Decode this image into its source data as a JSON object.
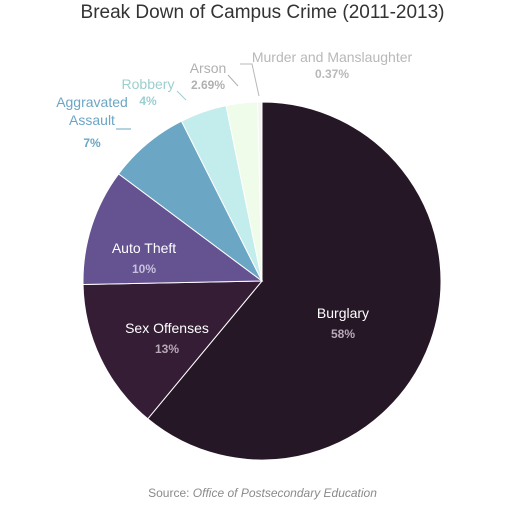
{
  "chart_data": {
    "type": "pie",
    "title": "Break Down of Campus Crime (2011-2013)",
    "slices": [
      {
        "label": "Burglary",
        "value": 58,
        "value_label": "58%",
        "color": "#251726",
        "label_color": "#ffffff",
        "value_color": "#b7a9b8",
        "label_position": "inside"
      },
      {
        "label": "Sex Offenses",
        "value": 13,
        "value_label": "13%",
        "color": "#341d35",
        "label_color": "#ffffff",
        "value_color": "#b7a9b8",
        "label_position": "inside"
      },
      {
        "label": "Auto Theft",
        "value": 10,
        "value_label": "10%",
        "color": "#645291",
        "label_color": "#ffffff",
        "value_color": "#c9c0de",
        "label_position": "inside"
      },
      {
        "label": "Aggravated\nAssault",
        "value": 7,
        "value_label": "7%",
        "color": "#6ba6c5",
        "label_color": "#6ba6c5",
        "value_color": "#6ba6c5",
        "label_position": "outside"
      },
      {
        "label": "Robbery",
        "value": 4,
        "value_label": "4%",
        "color": "#c3ecec",
        "label_color": "#9ccfcf",
        "value_color": "#9ccfcf",
        "label_position": "outside"
      },
      {
        "label": "Arson",
        "value": 2.69,
        "value_label": "2.69%",
        "color": "#eefce9",
        "label_color": "#b0b0b0",
        "value_color": "#b0b0b0",
        "label_position": "outside"
      },
      {
        "label": "Murder and Manslaughter",
        "value": 0.37,
        "value_label": "0.37%",
        "color": "#f4f4f4",
        "label_color": "#b8b8b8",
        "value_color": "#b8b8b8",
        "label_position": "outside"
      }
    ],
    "start": "top",
    "direction": "clockwise",
    "legend": "none"
  },
  "source": {
    "prefix": "Source: ",
    "name": "Office of Postsecondary Education"
  }
}
